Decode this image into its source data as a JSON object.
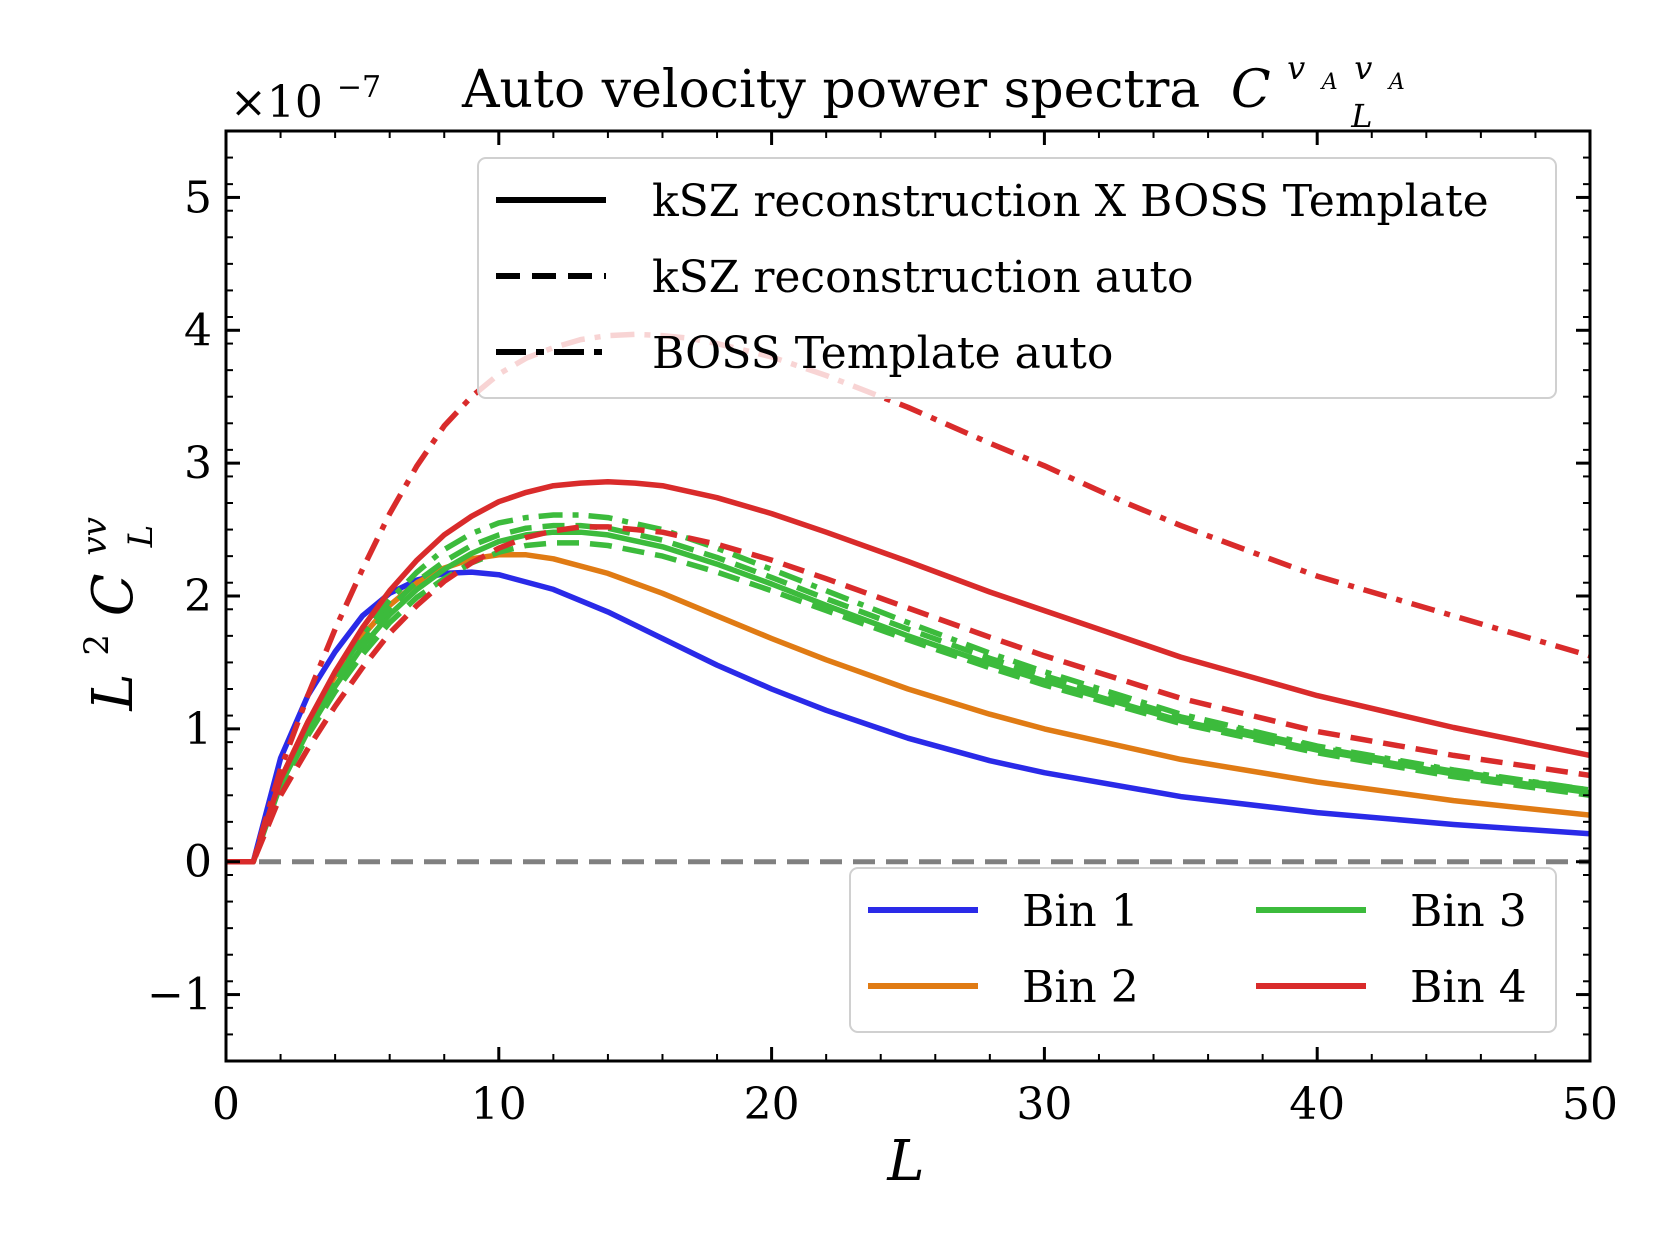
{
  "chart_data": {
    "type": "line",
    "title": "Auto velocity power spectra",
    "title_math": {
      "base": "C",
      "sup": "v",
      "sup_sub": "A",
      "sup2": "v",
      "sup2_sub": "A",
      "sub": "L"
    },
    "xlabel": "L",
    "ylabel": {
      "base": "L",
      "sup": "2",
      "base2": "C",
      "sup2": "vv",
      "sub": "L"
    },
    "offset_text": {
      "prefix": "×10",
      "exp": "−7"
    },
    "xlim": [
      0,
      50
    ],
    "ylim": [
      -1.5,
      5.5
    ],
    "scale_exponent": -7,
    "xticks": [
      0,
      10,
      20,
      30,
      40,
      50
    ],
    "xtick_labels": [
      "0",
      "10",
      "20",
      "30",
      "40",
      "50"
    ],
    "yticks": [
      -1,
      0,
      1,
      2,
      3,
      4,
      5
    ],
    "ytick_labels": [
      "−1",
      "0",
      "1",
      "2",
      "3",
      "4",
      "5"
    ],
    "grid": false,
    "colors": {
      "bin1": "#2a2ae8",
      "bin2": "#e07b14",
      "bin3": "#3cbb3c",
      "bin4": "#d92b2b",
      "zero_line": "#808080"
    },
    "style_legend": {
      "placement": "top-right",
      "entries": [
        {
          "label": "kSZ reconstruction X BOSS Template",
          "style": "solid"
        },
        {
          "label": "kSZ reconstruction auto",
          "style": "dashed"
        },
        {
          "label": "BOSS Template auto",
          "style": "dashdot"
        }
      ]
    },
    "bin_legend": {
      "placement": "lower-right",
      "entries": [
        {
          "label": "Bin 1",
          "color_key": "bin1"
        },
        {
          "label": "Bin 3",
          "color_key": "bin3"
        },
        {
          "label": "Bin 2",
          "color_key": "bin2"
        },
        {
          "label": "Bin 4",
          "color_key": "bin4"
        }
      ]
    },
    "series": [
      {
        "bin": "bin1",
        "style": "solid",
        "x": [
          0,
          1,
          2,
          3,
          4,
          5,
          6,
          7,
          8,
          9,
          10,
          12,
          14,
          16,
          18,
          20,
          22,
          25,
          28,
          30,
          35,
          40,
          45,
          50
        ],
        "y": [
          0,
          0,
          0.78,
          1.25,
          1.58,
          1.85,
          2.02,
          2.12,
          2.17,
          2.18,
          2.16,
          2.05,
          1.88,
          1.68,
          1.48,
          1.3,
          1.14,
          0.93,
          0.76,
          0.67,
          0.49,
          0.37,
          0.28,
          0.21
        ]
      },
      {
        "bin": "bin2",
        "style": "solid",
        "x": [
          0,
          1,
          2,
          3,
          4,
          5,
          6,
          7,
          8,
          9,
          10,
          11,
          12,
          14,
          16,
          18,
          20,
          22,
          25,
          28,
          30,
          35,
          40,
          45,
          50
        ],
        "y": [
          0,
          0,
          0.62,
          1.05,
          1.4,
          1.7,
          1.93,
          2.1,
          2.21,
          2.28,
          2.31,
          2.31,
          2.28,
          2.17,
          2.02,
          1.85,
          1.68,
          1.52,
          1.3,
          1.11,
          1.0,
          0.77,
          0.6,
          0.46,
          0.35
        ]
      },
      {
        "bin": "bin3",
        "style": "solid",
        "x": [
          0,
          1,
          2,
          3,
          4,
          5,
          6,
          7,
          8,
          9,
          10,
          11,
          12,
          13,
          14,
          16,
          18,
          20,
          22,
          25,
          28,
          30,
          35,
          40,
          45,
          50
        ],
        "y": [
          0,
          0,
          0.58,
          0.98,
          1.32,
          1.62,
          1.86,
          2.05,
          2.2,
          2.32,
          2.41,
          2.46,
          2.48,
          2.48,
          2.46,
          2.37,
          2.24,
          2.09,
          1.93,
          1.7,
          1.49,
          1.36,
          1.06,
          0.84,
          0.66,
          0.52
        ]
      },
      {
        "bin": "bin3",
        "style": "dashed",
        "x": [
          0,
          1,
          2,
          3,
          4,
          5,
          6,
          7,
          8,
          9,
          10,
          11,
          12,
          13,
          14,
          16,
          18,
          20,
          22,
          25,
          28,
          30,
          35,
          40,
          45,
          50
        ],
        "y": [
          0,
          0,
          0.56,
          0.95,
          1.28,
          1.56,
          1.8,
          1.99,
          2.13,
          2.25,
          2.33,
          2.38,
          2.4,
          2.4,
          2.38,
          2.3,
          2.18,
          2.04,
          1.89,
          1.67,
          1.46,
          1.33,
          1.04,
          0.82,
          0.64,
          0.5
        ]
      },
      {
        "bin": "bin3",
        "style": "dashed",
        "x": [
          0,
          1,
          2,
          3,
          4,
          5,
          6,
          7,
          8,
          9,
          10,
          11,
          12,
          13,
          14,
          16,
          18,
          20,
          22,
          25,
          28,
          30,
          35,
          40,
          45,
          50
        ],
        "y": [
          0,
          0,
          0.6,
          1.01,
          1.36,
          1.66,
          1.91,
          2.11,
          2.26,
          2.38,
          2.46,
          2.51,
          2.53,
          2.53,
          2.51,
          2.42,
          2.29,
          2.14,
          1.98,
          1.75,
          1.53,
          1.4,
          1.09,
          0.86,
          0.68,
          0.54
        ]
      },
      {
        "bin": "bin3",
        "style": "dashdot",
        "x": [
          0,
          1,
          2,
          3,
          4,
          5,
          6,
          7,
          8,
          9,
          10,
          11,
          12,
          13,
          14,
          16,
          18,
          20,
          22,
          25,
          28,
          30,
          35,
          40,
          45,
          50
        ],
        "y": [
          0,
          0,
          0.6,
          1.02,
          1.38,
          1.7,
          1.97,
          2.18,
          2.35,
          2.47,
          2.55,
          2.59,
          2.61,
          2.61,
          2.59,
          2.5,
          2.36,
          2.2,
          2.04,
          1.8,
          1.57,
          1.43,
          1.11,
          0.87,
          0.69,
          0.54
        ]
      },
      {
        "bin": "bin4",
        "style": "solid",
        "x": [
          0,
          1,
          2,
          3,
          4,
          5,
          6,
          7,
          8,
          9,
          10,
          11,
          12,
          13,
          14,
          15,
          16,
          18,
          20,
          22,
          25,
          28,
          30,
          35,
          40,
          45,
          50
        ],
        "y": [
          0,
          0,
          0.62,
          1.05,
          1.43,
          1.76,
          2.04,
          2.27,
          2.46,
          2.6,
          2.71,
          2.78,
          2.83,
          2.85,
          2.86,
          2.85,
          2.83,
          2.74,
          2.62,
          2.48,
          2.26,
          2.03,
          1.89,
          1.54,
          1.25,
          1.01,
          0.8
        ]
      },
      {
        "bin": "bin4",
        "style": "dashed",
        "x": [
          0,
          1,
          2,
          3,
          4,
          5,
          6,
          7,
          8,
          9,
          10,
          11,
          12,
          13,
          14,
          16,
          18,
          20,
          22,
          25,
          28,
          30,
          35,
          40,
          45,
          50
        ],
        "y": [
          0,
          0,
          0.5,
          0.85,
          1.17,
          1.46,
          1.72,
          1.93,
          2.11,
          2.25,
          2.36,
          2.44,
          2.49,
          2.52,
          2.52,
          2.48,
          2.39,
          2.27,
          2.13,
          1.91,
          1.69,
          1.55,
          1.23,
          0.98,
          0.8,
          0.65
        ]
      },
      {
        "bin": "bin4",
        "style": "dashdot",
        "x": [
          0,
          1,
          2,
          3,
          4,
          5,
          6,
          7,
          8,
          9,
          10,
          11,
          12,
          13,
          14,
          15,
          16,
          17,
          18,
          20,
          22,
          25,
          28,
          30,
          33,
          35,
          38,
          40,
          45,
          50
        ],
        "y": [
          0,
          0,
          0.7,
          1.25,
          1.75,
          2.2,
          2.62,
          2.98,
          3.28,
          3.5,
          3.67,
          3.79,
          3.87,
          3.93,
          3.96,
          3.97,
          3.96,
          3.94,
          3.9,
          3.8,
          3.66,
          3.42,
          3.15,
          2.98,
          2.7,
          2.53,
          2.3,
          2.15,
          1.85,
          1.55
        ]
      }
    ]
  }
}
